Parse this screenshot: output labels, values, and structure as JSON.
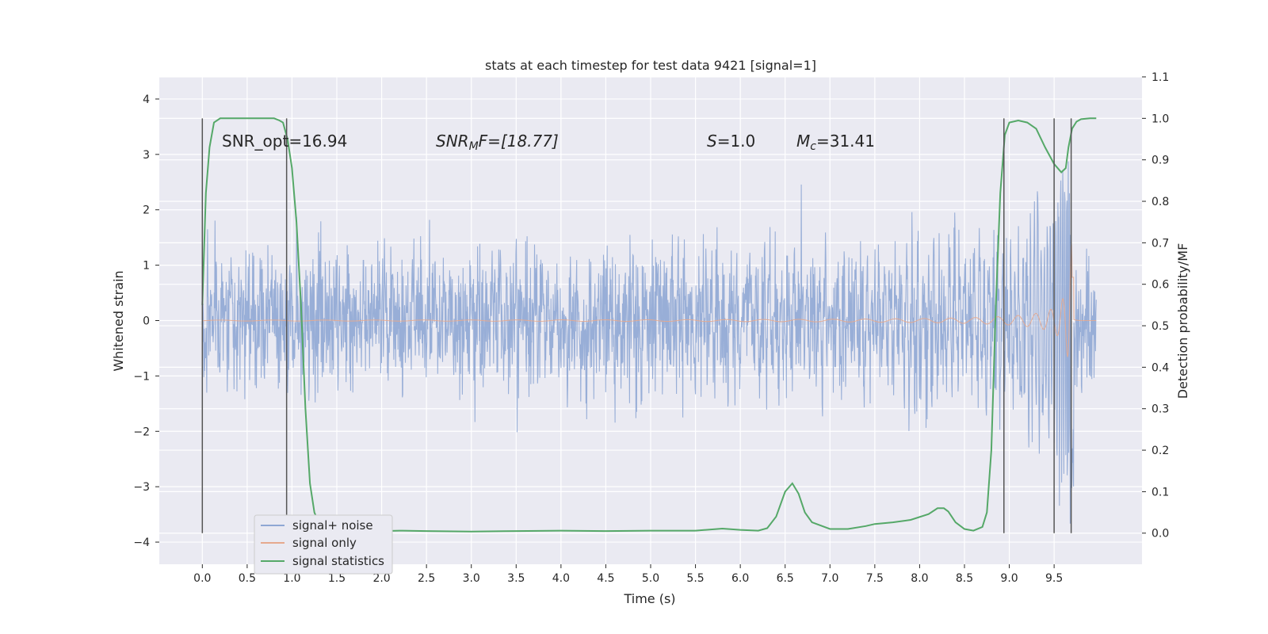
{
  "chart_data": {
    "type": "line",
    "title": "stats at each timestep for test data 9421 [signal=1]",
    "xlabel": "Time (s)",
    "ylabel": "Whitened strain",
    "y2label": "Detection probability/MF",
    "xlim": [
      -0.48,
      10.48
    ],
    "ylim": [
      -4.4,
      4.4
    ],
    "y2lim": [
      -0.075,
      1.1
    ],
    "xticks": [
      "0.0",
      "0.5",
      "1.0",
      "1.5",
      "2.0",
      "2.5",
      "3.0",
      "3.5",
      "4.0",
      "4.5",
      "5.0",
      "5.5",
      "6.0",
      "6.5",
      "7.0",
      "7.5",
      "8.0",
      "8.5",
      "9.0",
      "9.5"
    ],
    "yticks": [
      "4",
      "3",
      "2",
      "1",
      "0",
      "−1",
      "−2",
      "−3",
      "−4"
    ],
    "y2ticks": [
      "1.1",
      "1.0",
      "0.9",
      "0.8",
      "0.7",
      "0.6",
      "0.5",
      "0.4",
      "0.3",
      "0.2",
      "0.1",
      "0.0"
    ],
    "grid": true,
    "legend_position": "lower-left",
    "annotations": {
      "snr_opt": "SNR_opt=16.94",
      "snr_mf_prefix": "SNR",
      "snr_mf_sub": "M",
      "snr_mf_suffix": "F=[18.77]",
      "s_prefix": "S",
      "s_value": "=1.0",
      "mc_prefix": "M",
      "mc_sub": "c",
      "mc_value": "=31.41"
    },
    "segment_boundaries": [
      0.0,
      0.94,
      8.94,
      9.5,
      9.69
    ],
    "series": [
      {
        "name": "signal+ noise",
        "color": "#8fa7d4"
      },
      {
        "name": "signal only",
        "color": "#e6a98e"
      },
      {
        "name": "signal statistics",
        "color": "#55a868",
        "x": [
          0.0,
          0.04,
          0.08,
          0.13,
          0.2,
          0.3,
          0.4,
          0.5,
          0.6,
          0.7,
          0.8,
          0.86,
          0.9,
          0.95,
          1.0,
          1.05,
          1.1,
          1.15,
          1.2,
          1.25,
          1.3,
          1.4,
          1.5,
          1.7,
          2.0,
          2.2,
          2.5,
          3.0,
          3.5,
          4.0,
          4.5,
          5.0,
          5.5,
          5.8,
          6.0,
          6.2,
          6.3,
          6.4,
          6.5,
          6.58,
          6.65,
          6.72,
          6.8,
          7.0,
          7.2,
          7.4,
          7.5,
          7.7,
          7.9,
          8.1,
          8.2,
          8.27,
          8.32,
          8.4,
          8.5,
          8.6,
          8.7,
          8.75,
          8.8,
          8.85,
          8.9,
          8.95,
          9.0,
          9.1,
          9.2,
          9.3,
          9.4,
          9.5,
          9.58,
          9.63,
          9.66,
          9.7,
          9.75,
          9.8,
          9.9,
          9.97
        ],
        "values": [
          0.55,
          0.82,
          0.93,
          0.99,
          1.0,
          1.0,
          1.0,
          1.0,
          1.0,
          1.0,
          1.0,
          0.995,
          0.99,
          0.95,
          0.88,
          0.75,
          0.55,
          0.3,
          0.12,
          0.05,
          0.025,
          0.012,
          0.006,
          0.005,
          0.005,
          0.006,
          0.005,
          0.004,
          0.005,
          0.006,
          0.005,
          0.006,
          0.006,
          0.011,
          0.008,
          0.006,
          0.012,
          0.04,
          0.1,
          0.12,
          0.095,
          0.05,
          0.026,
          0.01,
          0.01,
          0.017,
          0.022,
          0.026,
          0.032,
          0.046,
          0.06,
          0.06,
          0.052,
          0.026,
          0.01,
          0.006,
          0.015,
          0.05,
          0.2,
          0.55,
          0.82,
          0.96,
          0.99,
          0.995,
          0.99,
          0.975,
          0.93,
          0.89,
          0.87,
          0.88,
          0.93,
          0.975,
          0.992,
          0.998,
          1.0,
          1.0
        ]
      }
    ]
  }
}
